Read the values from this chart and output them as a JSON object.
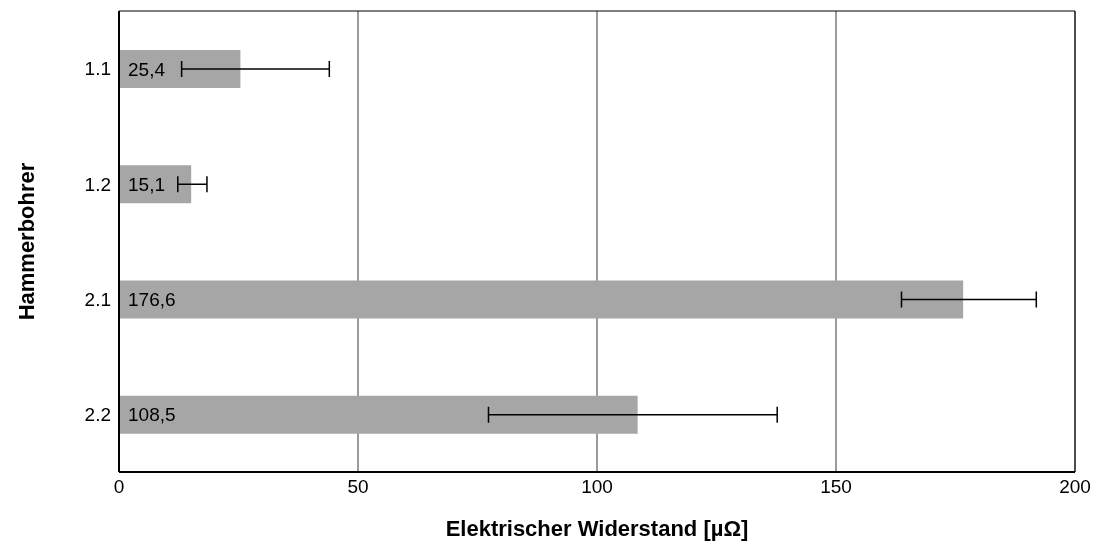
{
  "chart_data": {
    "type": "bar",
    "orientation": "horizontal",
    "xlabel": "Elektrischer Widerstand [µΩ]",
    "ylabel": "Hammerbohrer",
    "categories": [
      "1.1",
      "1.2",
      "2.1",
      "2.2"
    ],
    "values": [
      25.4,
      15.1,
      176.6,
      108.5
    ],
    "value_labels": [
      "25,4",
      "15,1",
      "176,6",
      "108,5"
    ],
    "errors": [
      [
        13.1,
        44.0
      ],
      [
        12.3,
        18.4
      ],
      [
        163.7,
        191.9
      ],
      [
        77.3,
        137.7
      ]
    ],
    "color": "#a6a6a6",
    "xlim": [
      0,
      200
    ],
    "xticks": [
      0,
      50,
      100,
      150,
      200
    ],
    "grid": "x"
  }
}
